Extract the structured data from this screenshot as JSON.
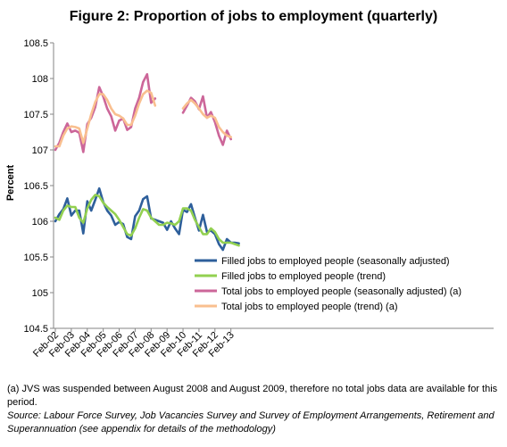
{
  "chart_data": {
    "type": "line",
    "title": "Figure 2: Proportion of jobs to employment (quarterly)",
    "xlabel": "",
    "ylabel": "Percent",
    "ylim": [
      104.5,
      108.5
    ],
    "yticks": [
      "104.5",
      "105",
      "105.5",
      "106",
      "106.5",
      "107",
      "107.5",
      "108",
      "108.5"
    ],
    "x_tick_labels": [
      "Feb-02",
      "Feb-03",
      "Feb-04",
      "Feb-05",
      "Feb-06",
      "Feb-07",
      "Feb-08",
      "Feb-09",
      "Feb-10",
      "Feb-11",
      "Feb-12",
      "Feb-13"
    ],
    "grid": false,
    "legend_position": "bottom-right",
    "series": [
      {
        "name": "Filled jobs to employed people (seasonally adjusted)",
        "color": "#2E5F9B",
        "values": [
          106.0,
          106.1,
          106.17,
          106.32,
          106.08,
          106.15,
          106.15,
          105.83,
          106.28,
          106.15,
          106.3,
          106.46,
          106.27,
          106.15,
          106.08,
          105.95,
          105.99,
          105.96,
          105.78,
          105.75,
          106.07,
          106.15,
          106.31,
          106.35,
          106.04,
          106.02,
          106.0,
          105.98,
          105.88,
          106.0,
          105.9,
          105.82,
          106.16,
          106.13,
          106.24,
          106.05,
          105.87,
          106.09,
          105.85,
          105.87,
          105.82,
          105.68,
          105.6,
          105.75,
          105.7,
          105.7,
          105.69
        ]
      },
      {
        "name": "Filled jobs to employed people (trend)",
        "color": "#92D050",
        "values": [
          106.05,
          106.02,
          106.15,
          106.22,
          106.2,
          106.2,
          106.05,
          105.98,
          106.18,
          106.3,
          106.37,
          106.35,
          106.26,
          106.2,
          106.15,
          106.1,
          106.02,
          105.92,
          105.82,
          105.8,
          105.9,
          106.05,
          106.17,
          106.15,
          106.05,
          106.0,
          105.95,
          105.95,
          105.98,
          105.97,
          105.95,
          106.0,
          106.18,
          106.18,
          106.15,
          106.02,
          105.92,
          105.82,
          105.82,
          105.9,
          105.85,
          105.75,
          105.7,
          105.7,
          105.7,
          105.68,
          105.66
        ]
      },
      {
        "name": "Total jobs to employed people (seasonally adjusted) (a)",
        "color": "#CC6699",
        "values": [
          107.0,
          107.1,
          107.25,
          107.37,
          107.25,
          107.27,
          107.24,
          106.97,
          107.36,
          107.45,
          107.6,
          107.88,
          107.75,
          107.58,
          107.47,
          107.27,
          107.41,
          107.44,
          107.28,
          107.32,
          107.58,
          107.73,
          107.95,
          108.06,
          107.66,
          107.72,
          null,
          null,
          null,
          null,
          null,
          null,
          107.52,
          107.62,
          107.73,
          107.68,
          107.57,
          107.75,
          107.45,
          107.53,
          107.39,
          107.2,
          107.07,
          107.27,
          107.15
        ]
      },
      {
        "name": "Total jobs to employed people (trend) (a)",
        "color": "#F9BF8F",
        "values": [
          107.05,
          107.05,
          107.2,
          107.3,
          107.33,
          107.32,
          107.3,
          107.1,
          107.3,
          107.5,
          107.67,
          107.78,
          107.78,
          107.7,
          107.58,
          107.5,
          107.48,
          107.44,
          107.35,
          107.35,
          107.48,
          107.65,
          107.78,
          107.83,
          107.8,
          107.62,
          null,
          null,
          null,
          null,
          null,
          null,
          107.58,
          107.65,
          107.7,
          107.65,
          107.58,
          107.5,
          107.45,
          107.48,
          107.45,
          107.32,
          107.25,
          107.2,
          107.18
        ]
      }
    ]
  },
  "notes": {
    "note_a": "(a) JVS was suspended between  August 2008 and August 2009, therefore no total jobs data are available for this period.",
    "source": "Source: Labour Force Survey, Job Vacancies Survey and Survey of Employment Arrangements, Retirement  and Superannuation (see appendix for details of the methodology)"
  }
}
